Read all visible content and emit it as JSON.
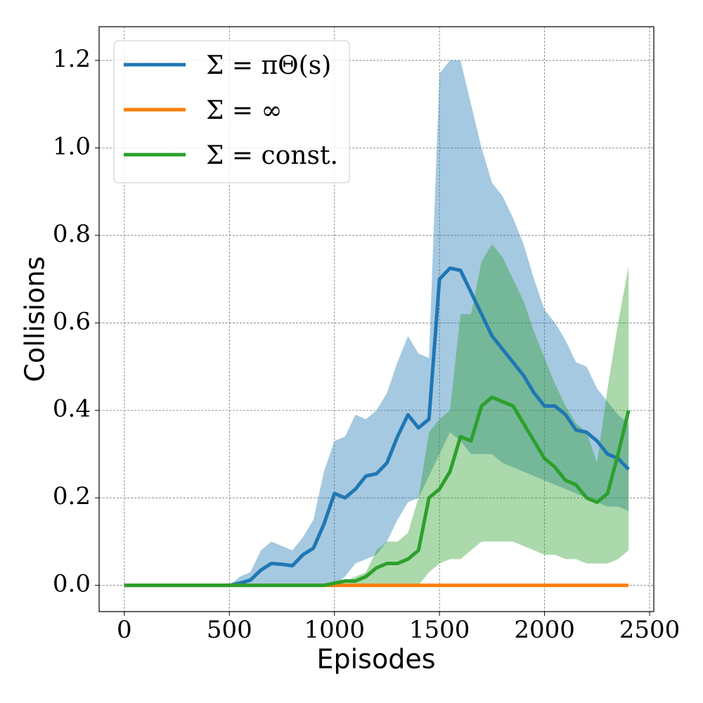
{
  "chart_data": {
    "type": "line",
    "x_label": "Episodes",
    "y_label": "Collisions",
    "x": [
      0,
      50,
      100,
      150,
      200,
      250,
      300,
      350,
      400,
      450,
      500,
      550,
      600,
      650,
      700,
      750,
      800,
      850,
      900,
      950,
      1000,
      1050,
      1100,
      1150,
      1200,
      1250,
      1300,
      1350,
      1400,
      1450,
      1500,
      1550,
      1600,
      1650,
      1700,
      1750,
      1800,
      1850,
      1900,
      1950,
      2000,
      2050,
      2100,
      2150,
      2200,
      2250,
      2300,
      2350,
      2400
    ],
    "series": [
      {
        "name": "Σ = πΘ(s)",
        "color": "#1f77b4",
        "values": [
          0,
          0,
          0,
          0,
          0,
          0,
          0,
          0,
          0,
          0,
          0,
          0.005,
          0.012,
          0.035,
          0.05,
          0.048,
          0.045,
          0.07,
          0.085,
          0.14,
          0.21,
          0.2,
          0.22,
          0.25,
          0.255,
          0.28,
          0.34,
          0.39,
          0.36,
          0.38,
          0.7,
          0.725,
          0.72,
          0.67,
          0.62,
          0.57,
          0.54,
          0.51,
          0.48,
          0.44,
          0.41,
          0.41,
          0.39,
          0.355,
          0.35,
          0.33,
          0.3,
          0.29,
          0.265
        ],
        "upper": [
          0,
          0,
          0,
          0,
          0,
          0,
          0,
          0,
          0,
          0,
          0,
          0.02,
          0.03,
          0.08,
          0.1,
          0.09,
          0.08,
          0.11,
          0.15,
          0.26,
          0.33,
          0.34,
          0.39,
          0.38,
          0.4,
          0.44,
          0.51,
          0.57,
          0.53,
          0.52,
          1.17,
          1.2,
          1.2,
          1.1,
          1.0,
          0.92,
          0.89,
          0.84,
          0.78,
          0.7,
          0.63,
          0.6,
          0.56,
          0.51,
          0.5,
          0.45,
          0.42,
          0.39,
          0.37
        ],
        "lower": [
          0,
          0,
          0,
          0,
          0,
          0,
          0,
          0,
          0,
          0,
          0,
          0,
          0,
          0,
          0,
          0,
          0,
          0,
          0,
          0,
          0,
          0.02,
          0.05,
          0.06,
          0.07,
          0.1,
          0.15,
          0.19,
          0.2,
          0.25,
          0.3,
          0.35,
          0.33,
          0.3,
          0.3,
          0.3,
          0.28,
          0.27,
          0.26,
          0.25,
          0.24,
          0.23,
          0.22,
          0.21,
          0.2,
          0.19,
          0.18,
          0.18,
          0.17
        ]
      },
      {
        "name": "Σ = ∞",
        "color": "#ff7f0e",
        "values": [
          0,
          0,
          0,
          0,
          0,
          0,
          0,
          0,
          0,
          0,
          0,
          0,
          0,
          0,
          0,
          0,
          0,
          0,
          0,
          0,
          0,
          0,
          0,
          0,
          0,
          0,
          0,
          0,
          0,
          0,
          0,
          0,
          0,
          0,
          0,
          0,
          0,
          0,
          0,
          0,
          0,
          0,
          0,
          0,
          0,
          0,
          0,
          0,
          0
        ]
      },
      {
        "name": "Σ = const.",
        "color": "#2ca02c",
        "values": [
          0,
          0,
          0,
          0,
          0,
          0,
          0,
          0,
          0,
          0,
          0,
          0,
          0,
          0,
          0,
          0,
          0,
          0,
          0,
          0,
          0.005,
          0.01,
          0.01,
          0.02,
          0.04,
          0.05,
          0.05,
          0.06,
          0.08,
          0.2,
          0.22,
          0.26,
          0.34,
          0.33,
          0.41,
          0.43,
          0.42,
          0.41,
          0.37,
          0.33,
          0.29,
          0.27,
          0.24,
          0.23,
          0.2,
          0.19,
          0.21,
          0.3,
          0.4
        ],
        "upper": [
          0,
          0,
          0,
          0,
          0,
          0,
          0,
          0,
          0,
          0,
          0,
          0,
          0,
          0,
          0,
          0,
          0,
          0,
          0,
          0,
          0.01,
          0.01,
          0.02,
          0.03,
          0.08,
          0.1,
          0.1,
          0.12,
          0.2,
          0.35,
          0.38,
          0.4,
          0.62,
          0.62,
          0.74,
          0.78,
          0.75,
          0.7,
          0.65,
          0.58,
          0.52,
          0.46,
          0.41,
          0.37,
          0.35,
          0.28,
          0.45,
          0.6,
          0.73
        ],
        "lower": [
          0,
          0,
          0,
          0,
          0,
          0,
          0,
          0,
          0,
          0,
          0,
          0,
          0,
          0,
          0,
          0,
          0,
          0,
          0,
          0,
          0,
          0,
          0,
          0,
          0,
          0,
          0,
          0,
          0,
          0.03,
          0.05,
          0.06,
          0.06,
          0.08,
          0.1,
          0.1,
          0.1,
          0.1,
          0.09,
          0.08,
          0.07,
          0.07,
          0.06,
          0.06,
          0.05,
          0.05,
          0.05,
          0.06,
          0.08
        ]
      }
    ],
    "xlim": [
      -120,
      2520
    ],
    "ylim": [
      -0.06,
      1.277
    ],
    "xticks": [
      0,
      500,
      1000,
      1500,
      2000,
      2500
    ],
    "yticks": [
      {
        "value": 0,
        "label": "0.0"
      },
      0.2,
      0.4,
      0.6,
      0.8,
      {
        "value": 1,
        "label": "1.0"
      },
      1.2
    ],
    "grid": true,
    "legend": "upper left"
  }
}
